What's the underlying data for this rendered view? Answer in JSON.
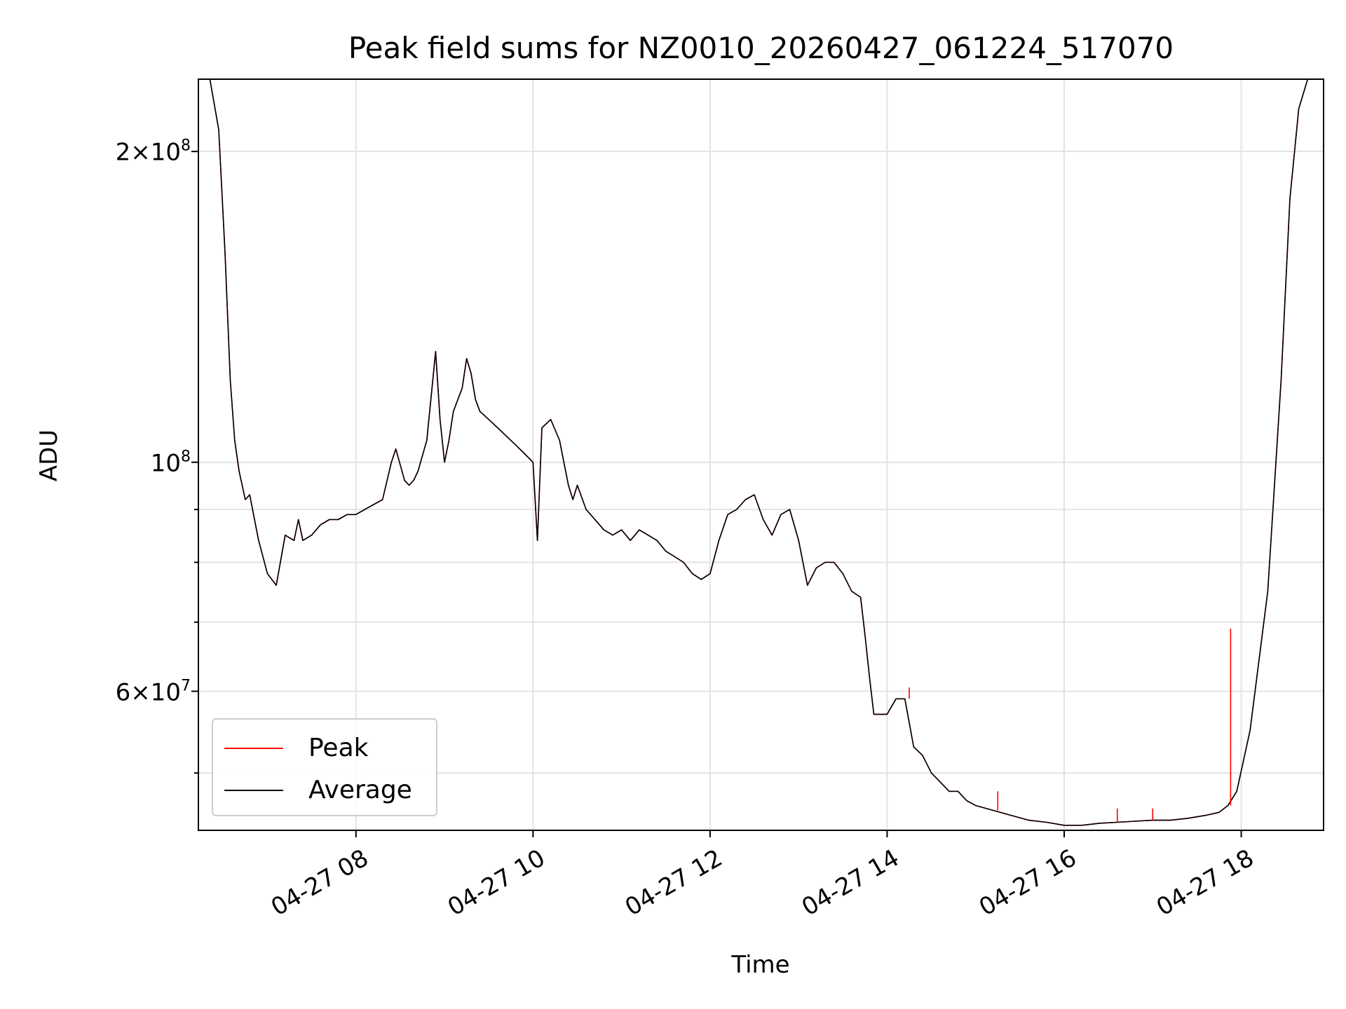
{
  "chart_data": {
    "type": "line",
    "title": "Peak field sums for NZ0010_20260427_061224_517070",
    "xlabel": "Time",
    "ylabel": "ADU",
    "yscale": "log",
    "ylim": [
      44000000,
      235000000
    ],
    "xlim_hours": [
      6.22,
      18.93
    ],
    "grid": true,
    "legend_position": "lower-left",
    "x_ticks": [
      "04-27 08",
      "04-27 10",
      "04-27 12",
      "04-27 14",
      "04-27 16",
      "04-27 18"
    ],
    "y_ticks": [
      {
        "value": 200000000,
        "base": "2×10",
        "exp": "8"
      },
      {
        "value": 100000000,
        "base": "10",
        "exp": "8"
      },
      {
        "value": 60000000,
        "base": "6×10",
        "exp": "7"
      }
    ],
    "x_hours": [
      6.22,
      6.35,
      6.45,
      6.52,
      6.58,
      6.63,
      6.68,
      6.75,
      6.8,
      6.9,
      7.0,
      7.1,
      7.2,
      7.3,
      7.35,
      7.4,
      7.5,
      7.6,
      7.7,
      7.8,
      7.9,
      8.0,
      8.1,
      8.3,
      8.4,
      8.45,
      8.55,
      8.6,
      8.65,
      8.7,
      8.8,
      8.9,
      8.95,
      9.0,
      9.05,
      9.1,
      9.2,
      9.25,
      9.3,
      9.35,
      9.4,
      9.5,
      9.6,
      9.7,
      9.8,
      9.9,
      10.0,
      10.05,
      10.1,
      10.2,
      10.3,
      10.4,
      10.45,
      10.5,
      10.6,
      10.7,
      10.8,
      10.9,
      11.0,
      11.1,
      11.2,
      11.3,
      11.4,
      11.5,
      11.6,
      11.7,
      11.8,
      11.9,
      12.0,
      12.1,
      12.2,
      12.3,
      12.4,
      12.5,
      12.6,
      12.7,
      12.8,
      12.9,
      13.0,
      13.1,
      13.2,
      13.3,
      13.4,
      13.5,
      13.6,
      13.7,
      13.75,
      13.8,
      13.85,
      13.9,
      14.0,
      14.1,
      14.2,
      14.3,
      14.4,
      14.5,
      14.6,
      14.7,
      14.8,
      14.9,
      15.0,
      15.2,
      15.4,
      15.6,
      15.8,
      16.0,
      16.2,
      16.4,
      16.6,
      16.8,
      17.0,
      17.2,
      17.4,
      17.6,
      17.75,
      17.85,
      17.95,
      18.1,
      18.3,
      18.45,
      18.55,
      18.65,
      18.75,
      18.8,
      18.85,
      18.93
    ],
    "series": [
      {
        "name": "Peak",
        "color": "#ff0000",
        "values": [
          235000000.0,
          235000000.0,
          210000000.0,
          160000000.0,
          120000000.0,
          105000000.0,
          98000000.0,
          92000000.0,
          93000000.0,
          84000000.0,
          78000000.0,
          76000000.0,
          85000000.0,
          84000000.0,
          88000000.0,
          84000000.0,
          85000000.0,
          87000000.0,
          88000000.0,
          88000000.0,
          89000000.0,
          89000000.0,
          90000000.0,
          92000000.0,
          100000000.0,
          103000000.0,
          96000000.0,
          95000000.0,
          96000000.0,
          98000000.0,
          105000000.0,
          128000000.0,
          110000000.0,
          100000000.0,
          105000000.0,
          112000000.0,
          118000000.0,
          126000000.0,
          122000000.0,
          115000000.0,
          112000000.0,
          110000000.0,
          108000000.0,
          106000000.0,
          104000000.0,
          102000000.0,
          100000000.0,
          84000000.0,
          108000000.0,
          110000000.0,
          105000000.0,
          95000000.0,
          92000000.0,
          95000000.0,
          90000000.0,
          88000000.0,
          86000000.0,
          85000000.0,
          86000000.0,
          84000000.0,
          86000000.0,
          85000000.0,
          84000000.0,
          82000000.0,
          81000000.0,
          80000000.0,
          78000000.0,
          77000000.0,
          78000000.0,
          84000000.0,
          89000000.0,
          90000000.0,
          92000000.0,
          93000000.0,
          88000000.0,
          85000000.0,
          89000000.0,
          90000000.0,
          84000000.0,
          76000000.0,
          79000000.0,
          80000000.0,
          80000000.0,
          78000000.0,
          75000000.0,
          74000000.0,
          68000000.0,
          62000000.0,
          57000000.0,
          57000000.0,
          57000000.0,
          59000000.0,
          59000000.0,
          53000000.0,
          52000000.0,
          50000000.0,
          49000000.0,
          48000000.0,
          48000000.0,
          47000000.0,
          46500000.0,
          46000000.0,
          45500000.0,
          45000000.0,
          44800000.0,
          44500000.0,
          44500000.0,
          44700000.0,
          44800000.0,
          44900000.0,
          45000000.0,
          45000000.0,
          45200000.0,
          45500000.0,
          45800000.0,
          46500000.0,
          48000000.0,
          55000000.0,
          75000000.0,
          120000000.0,
          180000000.0,
          220000000.0,
          235000000.0,
          235000000.0
        ]
      },
      {
        "name": "Average",
        "color": "#000000",
        "values": [
          235000000.0,
          235000000.0,
          210000000.0,
          160000000.0,
          120000000.0,
          105000000.0,
          98000000.0,
          92000000.0,
          93000000.0,
          84000000.0,
          78000000.0,
          76000000.0,
          85000000.0,
          84000000.0,
          88000000.0,
          84000000.0,
          85000000.0,
          87000000.0,
          88000000.0,
          88000000.0,
          89000000.0,
          89000000.0,
          90000000.0,
          92000000.0,
          100000000.0,
          103000000.0,
          96000000.0,
          95000000.0,
          96000000.0,
          98000000.0,
          105000000.0,
          128000000.0,
          110000000.0,
          100000000.0,
          105000000.0,
          112000000.0,
          118000000.0,
          126000000.0,
          122000000.0,
          115000000.0,
          112000000.0,
          110000000.0,
          108000000.0,
          106000000.0,
          104000000.0,
          102000000.0,
          100000000.0,
          84000000.0,
          108000000.0,
          110000000.0,
          105000000.0,
          95000000.0,
          92000000.0,
          95000000.0,
          90000000.0,
          88000000.0,
          86000000.0,
          85000000.0,
          86000000.0,
          84000000.0,
          86000000.0,
          85000000.0,
          84000000.0,
          82000000.0,
          81000000.0,
          80000000.0,
          78000000.0,
          77000000.0,
          78000000.0,
          84000000.0,
          89000000.0,
          90000000.0,
          92000000.0,
          93000000.0,
          88000000.0,
          85000000.0,
          89000000.0,
          90000000.0,
          84000000.0,
          76000000.0,
          79000000.0,
          80000000.0,
          80000000.0,
          78000000.0,
          75000000.0,
          74000000.0,
          68000000.0,
          62000000.0,
          57000000.0,
          57000000.0,
          57000000.0,
          59000000.0,
          59000000.0,
          53000000.0,
          52000000.0,
          50000000.0,
          49000000.0,
          48000000.0,
          48000000.0,
          47000000.0,
          46500000.0,
          46000000.0,
          45500000.0,
          45000000.0,
          44800000.0,
          44500000.0,
          44500000.0,
          44700000.0,
          44800000.0,
          44900000.0,
          45000000.0,
          45000000.0,
          45200000.0,
          45500000.0,
          45800000.0,
          46500000.0,
          48000000.0,
          55000000.0,
          75000000.0,
          120000000.0,
          180000000.0,
          220000000.0,
          235000000.0,
          235000000.0
        ]
      }
    ],
    "peak_spikes": [
      {
        "x_hour": 17.88,
        "value": 69000000
      },
      {
        "x_hour": 14.25,
        "value": 60500000
      },
      {
        "x_hour": 16.6,
        "value": 46200000
      },
      {
        "x_hour": 17.0,
        "value": 46200000
      },
      {
        "x_hour": 15.25,
        "value": 48000000
      }
    ],
    "legend": [
      {
        "label": "Peak",
        "color": "#ff0000"
      },
      {
        "label": "Average",
        "color": "#000000"
      }
    ]
  }
}
